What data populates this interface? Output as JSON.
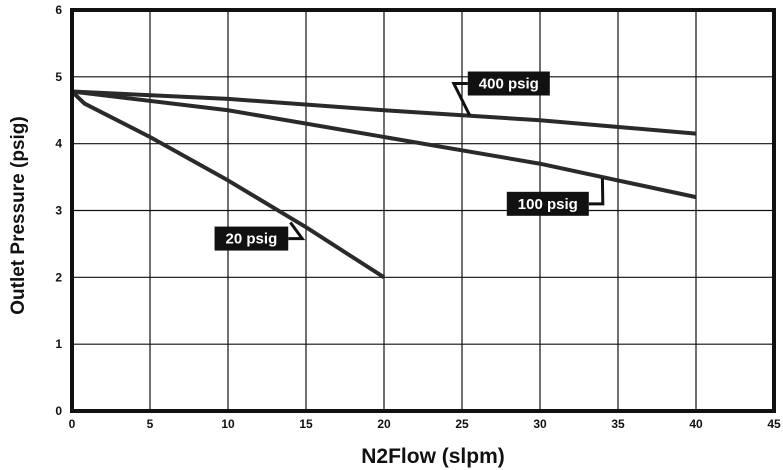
{
  "chart_data": {
    "type": "line",
    "title": "",
    "xlabel": "N2Flow (slpm)",
    "ylabel": "Outlet Pressure (psig)",
    "xlim": [
      0,
      45
    ],
    "ylim": [
      0,
      6
    ],
    "x_ticks": [
      "0",
      "5",
      "10",
      "15",
      "20",
      "25",
      "30",
      "35",
      "40",
      "45"
    ],
    "y_ticks": [
      "0",
      "1",
      "2",
      "3",
      "4",
      "5",
      "6"
    ],
    "grid": true,
    "series": [
      {
        "name": "400 psig",
        "x": [
          0,
          10,
          20,
          30,
          40
        ],
        "y": [
          4.78,
          4.67,
          4.5,
          4.35,
          4.15
        ]
      },
      {
        "name": "100 psig",
        "x": [
          0,
          10,
          20,
          30,
          40
        ],
        "y": [
          4.78,
          4.5,
          4.1,
          3.7,
          3.2
        ]
      },
      {
        "name": "20 psig",
        "x": [
          0,
          0.8,
          5,
          10,
          15,
          20
        ],
        "y": [
          4.78,
          4.6,
          4.1,
          3.45,
          2.75,
          2.0
        ]
      }
    ],
    "callouts": [
      {
        "series": "400 psig",
        "label": "400 psig",
        "anchor": [
          25.5,
          4.42
        ],
        "label_at": [
          28,
          4.9
        ]
      },
      {
        "series": "100 psig",
        "label": "100 psig",
        "anchor": [
          34,
          3.48
        ],
        "label_at": [
          30.5,
          3.1
        ]
      },
      {
        "series": "20 psig",
        "label": "20 psig",
        "anchor": [
          14,
          2.82
        ],
        "label_at": [
          11.5,
          2.58
        ]
      }
    ],
    "colors": {
      "line": "#2a2a2a",
      "grid": "#111111",
      "callout_bg": "#111111",
      "callout_text": "#ffffff"
    }
  }
}
